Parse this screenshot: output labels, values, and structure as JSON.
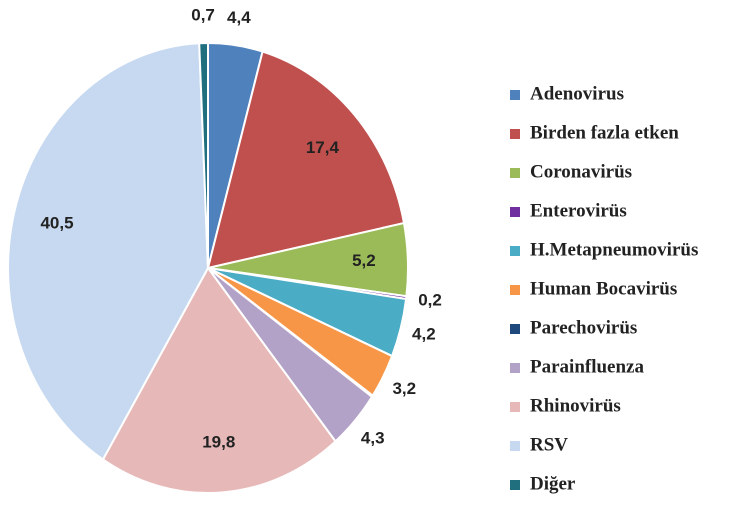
{
  "chart_data": {
    "type": "pie",
    "categories": [
      "Adenovirus",
      "Birden fazla etken",
      "Coronavirüs",
      "Enterovirüs",
      "H.Metapneumovirüs",
      "Human Bocavirüs",
      "Parechovirüs",
      "Parainfluenza",
      "Rhinovirüs",
      "RSV",
      "Diğer"
    ],
    "values": [
      4.4,
      17.4,
      5.2,
      0.2,
      4.2,
      3.2,
      0.1,
      4.3,
      19.8,
      40.5,
      0.7
    ],
    "value_labels": [
      "4,4",
      "17,4",
      "5,2",
      "0,2",
      "4,2",
      "3,2",
      null,
      "4,3",
      "19,8",
      "40,5",
      "0,7"
    ],
    "colors": [
      "#4f81bd",
      "#c0504d",
      "#9bbb59",
      "#7030a0",
      "#4bacc6",
      "#f79646",
      "#1f497d",
      "#b3a2c7",
      "#e6b9b8",
      "#c6d9f1",
      "#1f6f7f"
    ],
    "legend": "right"
  }
}
